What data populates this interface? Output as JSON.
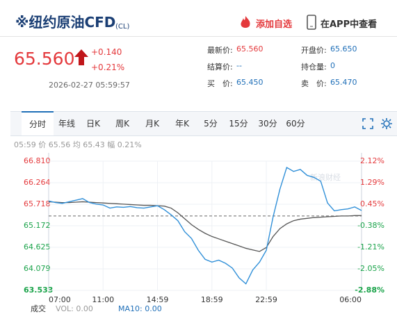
{
  "header": {
    "title": "※纽约原油CFD",
    "code": "(CL)",
    "add_watchlist": "添加自选",
    "open_app": "在APP中查看"
  },
  "quote": {
    "price": "65.560",
    "change": "+0.140",
    "change_pct": "+0.21%",
    "time": "2026-02-27 05:59:57",
    "fields": [
      {
        "label": "最新价:",
        "value": "65.560"
      },
      {
        "label": "开盘价:",
        "value": "65.650"
      },
      {
        "label": "结算价:",
        "value": "--"
      },
      {
        "label": "持仓量:",
        "value": "0"
      },
      {
        "label": "买　价:",
        "value": "65.450"
      },
      {
        "label": "卖　价:",
        "value": "65.470"
      }
    ]
  },
  "tabs": [
    "分时",
    "年线",
    "日K",
    "周K",
    "月K",
    "年K",
    "5分",
    "15分",
    "30分",
    "60分"
  ],
  "info": {
    "time": "05:59",
    "price_label": "价",
    "price": "65.56",
    "avg_label": "均",
    "avg": "65.43",
    "pct_label": "幅",
    "pct": "0.21%"
  },
  "chart_data": {
    "type": "line",
    "watermark": "新浪财经",
    "categories": [
      "07:00",
      null,
      null,
      null,
      null,
      null,
      null,
      null,
      "11:00",
      null,
      null,
      null,
      null,
      null,
      null,
      null,
      "14:59",
      null,
      null,
      null,
      null,
      null,
      null,
      null,
      "18:59",
      null,
      null,
      null,
      null,
      null,
      null,
      null,
      "22:59",
      null,
      null,
      null,
      null,
      null,
      null,
      null,
      null,
      null,
      null,
      null,
      null,
      null,
      "06:00"
    ],
    "values": [
      65.8,
      65.76,
      65.74,
      65.78,
      65.82,
      65.86,
      65.76,
      65.72,
      65.7,
      65.62,
      65.65,
      65.64,
      65.66,
      65.63,
      65.62,
      65.65,
      65.68,
      65.58,
      65.45,
      65.3,
      65.02,
      64.85,
      64.55,
      64.32,
      64.25,
      64.3,
      64.22,
      64.1,
      63.85,
      63.7,
      64.05,
      64.25,
      64.55,
      65.4,
      66.1,
      66.65,
      66.55,
      66.6,
      66.45,
      66.4,
      66.3,
      65.75,
      65.55,
      65.58,
      65.6,
      65.65,
      65.56
    ],
    "color": "#2f8fd8",
    "average": [
      65.78,
      65.77,
      65.76,
      65.76,
      65.77,
      65.78,
      65.77,
      65.76,
      65.75,
      65.74,
      65.73,
      65.72,
      65.71,
      65.7,
      65.69,
      65.69,
      65.68,
      65.67,
      65.62,
      65.5,
      65.35,
      65.2,
      65.08,
      64.98,
      64.9,
      64.84,
      64.78,
      64.72,
      64.66,
      64.6,
      64.56,
      64.52,
      64.62,
      64.9,
      65.1,
      65.22,
      65.3,
      65.34,
      65.36,
      65.38,
      65.39,
      65.4,
      65.41,
      65.42,
      65.42,
      65.43,
      65.43
    ],
    "average_color": "#555555",
    "reference": 65.42,
    "ylim": [
      63.533,
      66.81
    ],
    "yticks": [
      63.533,
      64.079,
      64.625,
      65.172,
      65.718,
      66.264,
      {
        "value": 66.81,
        "label": "66.810"
      }
    ],
    "y2lim": [
      -2.88,
      2.12
    ],
    "y2ticks": [
      {
        "value": -2.88,
        "label": "-2.88%"
      },
      {
        "value": -2.05,
        "label": "-2.05%"
      },
      {
        "value": -1.21,
        "label": "-1.21%"
      },
      {
        "value": -0.38,
        "label": "-0.38%"
      },
      {
        "value": 0.45,
        "label": "0.45%"
      },
      {
        "value": 1.29,
        "label": "1.29%"
      },
      {
        "value": 2.12,
        "label": "2.12%"
      }
    ],
    "grid": true
  },
  "volume": {
    "label": "成交",
    "vol": "VOL: 0.00",
    "ma10": "MA10: 0.00"
  }
}
